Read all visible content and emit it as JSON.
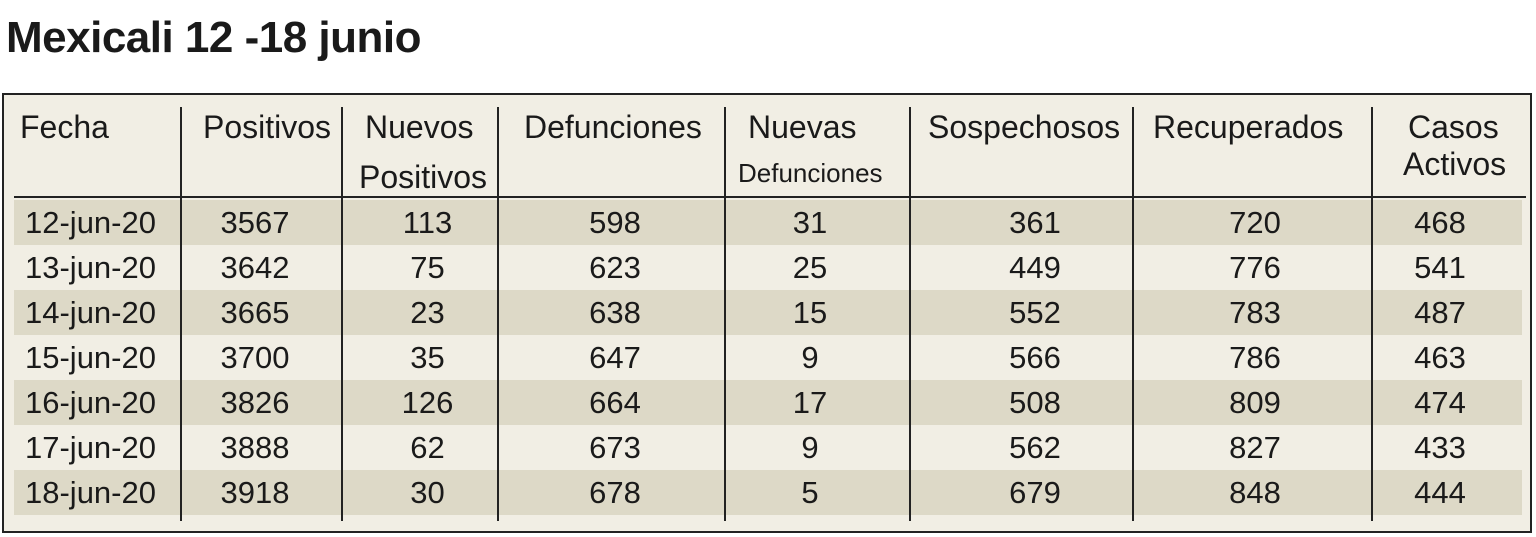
{
  "title": "Mexicali 12 -18  junio",
  "chart_data": {
    "type": "table",
    "title": "Mexicali 12 -18  junio",
    "columns": [
      {
        "line1": "Fecha",
        "line2": ""
      },
      {
        "line1": "Positivos",
        "line2": ""
      },
      {
        "line1": "Nuevos",
        "line2": "Positivos"
      },
      {
        "line1": "Defunciones",
        "line2": ""
      },
      {
        "line1": "Nuevas",
        "line2": "Defunciones"
      },
      {
        "line1": "Sospechosos",
        "line2": ""
      },
      {
        "line1": "Recuperados",
        "line2": ""
      },
      {
        "line1": "Casos",
        "line2": "Activos"
      }
    ],
    "rows": [
      [
        "12-jun-20",
        "3567",
        "113",
        "598",
        "31",
        "361",
        "720",
        "468"
      ],
      [
        "13-jun-20",
        "3642",
        "75",
        "623",
        "25",
        "449",
        "776",
        "541"
      ],
      [
        "14-jun-20",
        "3665",
        "23",
        "638",
        "15",
        "552",
        "783",
        "487"
      ],
      [
        "15-jun-20",
        "3700",
        "35",
        "647",
        "9",
        "566",
        "786",
        "463"
      ],
      [
        "16-jun-20",
        "3826",
        "126",
        "664",
        "17",
        "508",
        "809",
        "474"
      ],
      [
        "17-jun-20",
        "3888",
        "62",
        "673",
        "9",
        "562",
        "827",
        "433"
      ],
      [
        "18-jun-20",
        "3918",
        "30",
        "678",
        "5",
        "679",
        "848",
        "444"
      ]
    ],
    "colors": {
      "background": "#f1eee4",
      "band": "#ddd9c7",
      "rule": "#222222"
    }
  }
}
